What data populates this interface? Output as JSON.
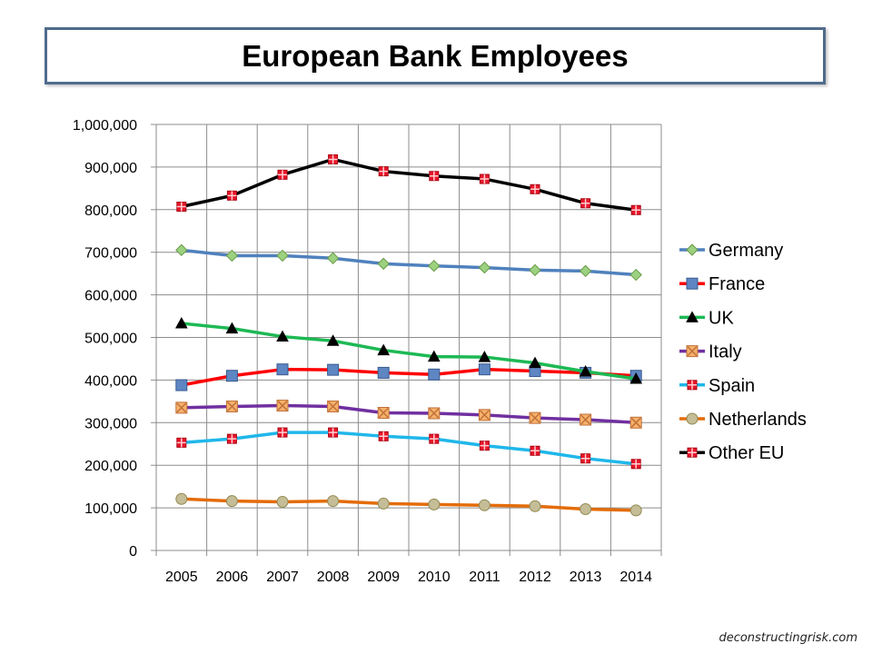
{
  "chart_data": {
    "type": "line",
    "title": "European Bank Employees",
    "xlabel": "",
    "ylabel": "",
    "ylim": [
      0,
      1000000
    ],
    "ytick_labels": [
      "0",
      "100,000",
      "200,000",
      "300,000",
      "400,000",
      "500,000",
      "600,000",
      "700,000",
      "800,000",
      "900,000",
      "1,000,000"
    ],
    "ytick_values": [
      0,
      100000,
      200000,
      300000,
      400000,
      500000,
      600000,
      700000,
      800000,
      900000,
      1000000
    ],
    "categories": [
      "2005",
      "2006",
      "2007",
      "2008",
      "2009",
      "2010",
      "2011",
      "2012",
      "2013",
      "2014"
    ],
    "grid": true,
    "legend_position": "right",
    "series": [
      {
        "name": "Germany",
        "color": "#4f81bd",
        "marker": "diamond",
        "marker_fill": "#9bd17f",
        "marker_stroke": "#6a9a4a",
        "values": [
          705000,
          692000,
          692000,
          686000,
          673000,
          668000,
          664000,
          658000,
          656000,
          647000
        ]
      },
      {
        "name": "France",
        "color": "#ff0000",
        "marker": "square",
        "marker_fill": "#5e86c3",
        "marker_stroke": "#3a5b8f",
        "values": [
          388000,
          410000,
          425000,
          424000,
          417000,
          413000,
          425000,
          421000,
          417000,
          410000
        ]
      },
      {
        "name": "UK",
        "color": "#1db954",
        "marker": "triangle",
        "marker_fill": "#000000",
        "marker_stroke": "#000000",
        "values": [
          533000,
          521000,
          502000,
          492000,
          470000,
          455000,
          454000,
          440000,
          420000,
          403000
        ]
      },
      {
        "name": "Italy",
        "color": "#7030a0",
        "marker": "xsquare",
        "marker_fill": "#f6b26b",
        "marker_stroke": "#c0703a",
        "values": [
          335000,
          338000,
          340000,
          338000,
          323000,
          322000,
          318000,
          311000,
          307000,
          300000
        ]
      },
      {
        "name": "Spain",
        "color": "#1fb7ea",
        "marker": "plussquare",
        "marker_fill": "#e8162c",
        "marker_stroke": "#a80010",
        "values": [
          253000,
          262000,
          277000,
          277000,
          268000,
          262000,
          246000,
          234000,
          216000,
          203000
        ]
      },
      {
        "name": "Netherlands",
        "color": "#e46c0a",
        "marker": "circle",
        "marker_fill": "#c4bd97",
        "marker_stroke": "#938953",
        "values": [
          121000,
          116000,
          114000,
          116000,
          110000,
          108000,
          106000,
          104000,
          97000,
          94000
        ]
      },
      {
        "name": "Other EU",
        "color": "#000000",
        "marker": "plussquare",
        "marker_fill": "#e8162c",
        "marker_stroke": "#a80010",
        "values": [
          807000,
          833000,
          882000,
          918000,
          890000,
          879000,
          872000,
          848000,
          815000,
          799000
        ]
      }
    ]
  },
  "footer": {
    "credit": "deconstructingrisk.com"
  }
}
